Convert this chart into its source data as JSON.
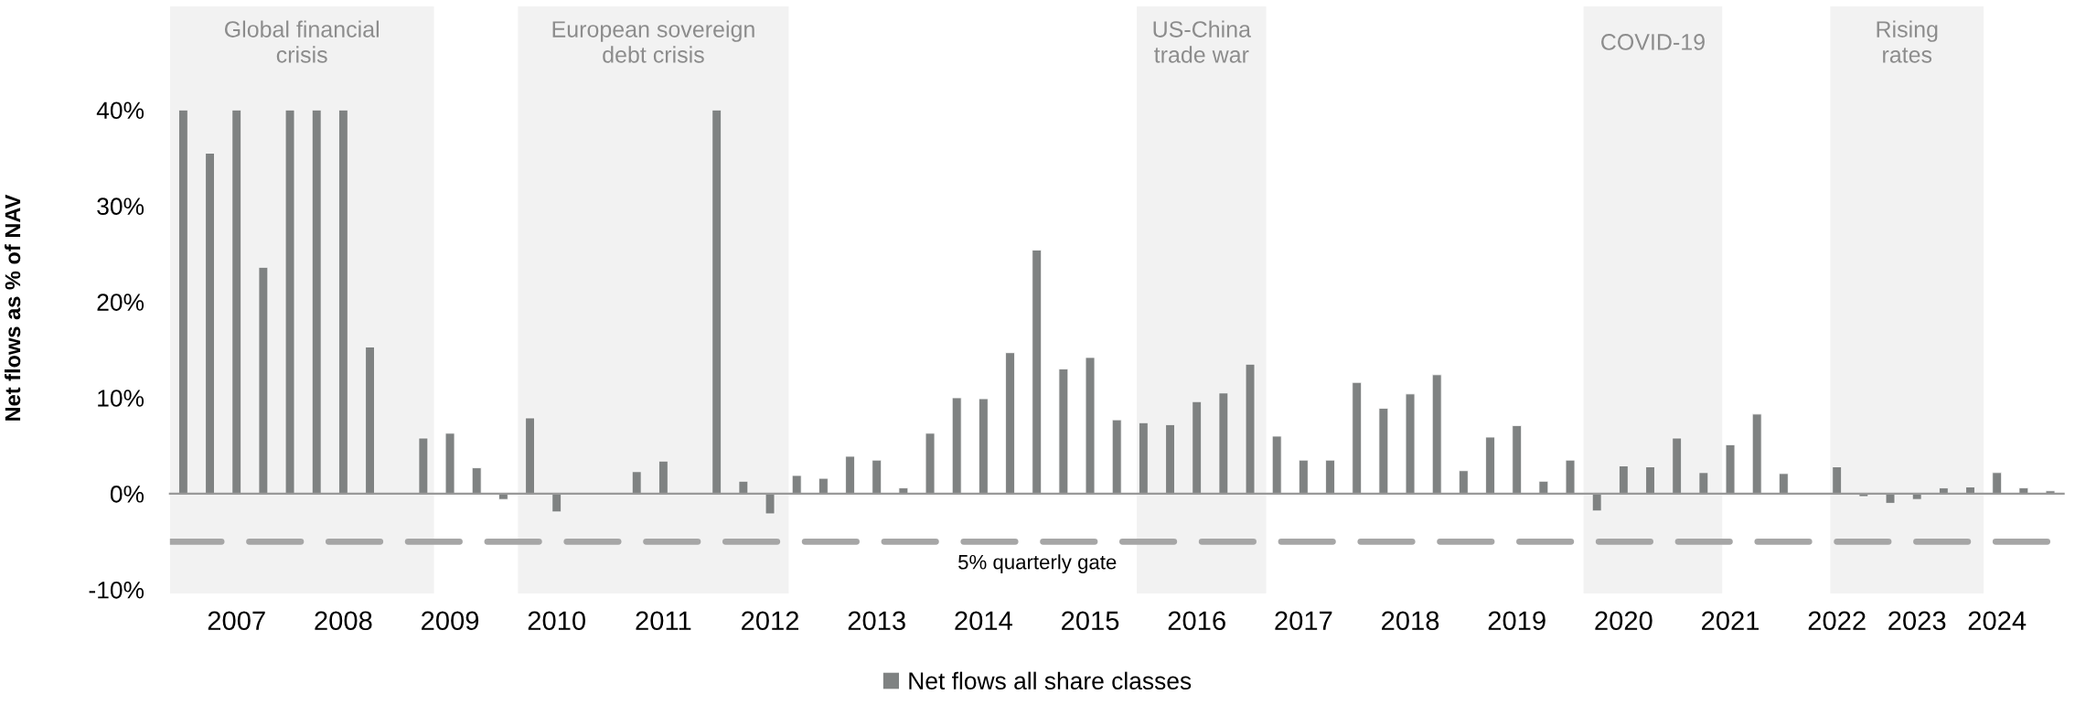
{
  "chart_data": {
    "type": "bar",
    "ylabel": "Net flows as % of NAV",
    "categories": [
      null,
      null,
      "2007",
      null,
      null,
      null,
      "2008",
      null,
      null,
      null,
      "2009",
      null,
      null,
      null,
      "2010",
      null,
      null,
      null,
      "2011",
      null,
      null,
      null,
      "2012",
      null,
      null,
      null,
      "2013",
      null,
      null,
      null,
      "2014",
      null,
      null,
      null,
      "2015",
      null,
      null,
      null,
      "2016",
      null,
      null,
      null,
      "2017",
      null,
      null,
      null,
      "2018",
      null,
      null,
      null,
      "2019",
      null,
      null,
      null,
      "2020",
      null,
      null,
      null,
      "2021",
      null,
      null,
      null,
      "2022",
      null,
      null,
      "2023",
      null,
      null,
      "2024",
      null,
      null
    ],
    "series": [
      {
        "name": "Net flows all share classes",
        "color": "#7f8282",
        "values": [
          40,
          35.5,
          40,
          23.6,
          40,
          40,
          40,
          15.3,
          null,
          5.8,
          6.3,
          2.7,
          -0.6,
          7.9,
          -1.9,
          null,
          null,
          2.3,
          3.4,
          null,
          40,
          1.3,
          -2.1,
          1.9,
          1.6,
          3.9,
          3.5,
          0.6,
          6.3,
          10.0,
          9.9,
          14.7,
          25.4,
          13.0,
          14.2,
          7.7,
          7.4,
          7.2,
          9.6,
          10.5,
          13.5,
          6.0,
          3.5,
          3.5,
          11.6,
          8.9,
          10.4,
          12.4,
          2.4,
          5.9,
          7.1,
          1.3,
          3.5,
          -1.8,
          2.9,
          2.8,
          5.8,
          2.2,
          5.1,
          8.3,
          2.1,
          null,
          2.8,
          -0.3,
          -1.0,
          -0.6,
          0.6,
          0.7,
          2.2,
          0.6,
          0.3
        ]
      }
    ],
    "ylim": [
      -10.4,
      50.8
    ],
    "yticks": [
      {
        "value": -10,
        "label": "-10%"
      },
      {
        "value": 0,
        "label": "0%"
      },
      {
        "value": 10,
        "label": "10%"
      },
      {
        "value": 20,
        "label": "20%"
      },
      {
        "value": 30,
        "label": "30%"
      },
      {
        "value": 40,
        "label": "40%"
      }
    ],
    "annotations": [
      "Global financial\ncrisis",
      "European sovereign\ndebt crisis",
      "US-China\ntrade war",
      "COVID-19",
      "Rising\nrates"
    ],
    "ref_lines": [
      {
        "axis": "y",
        "value": -5,
        "label": "5% quarterly gate",
        "color": "#a6a6a6",
        "line_style": "dashed"
      }
    ],
    "legend": "bottom"
  }
}
